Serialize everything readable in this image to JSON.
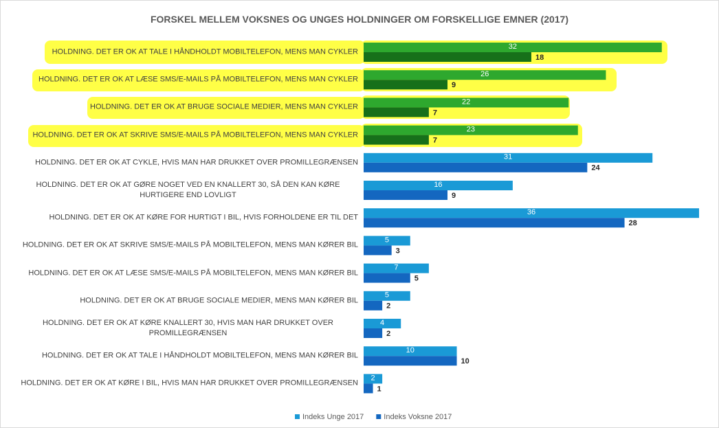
{
  "chart_data": {
    "type": "bar",
    "orientation": "horizontal",
    "title": "FORSKEL MELLEM VOKSNES OG UNGES HOLDNINGER OM FORSKELLIGE EMNER (2017)",
    "categories": [
      "HOLDNING. DET ER OK AT TALE I HÅNDHOLDT MOBILTELEFON, MENS MAN CYKLER",
      "HOLDNING. DET ER OK AT LÆSE SMS/E-MAILS PÅ MOBILTELEFON, MENS MAN CYKLER",
      "HOLDNING. DET ER OK AT BRUGE SOCIALE MEDIER, MENS MAN CYKLER",
      "HOLDNING. DET ER OK AT SKRIVE SMS/E-MAILS PÅ MOBILTELEFON, MENS MAN CYKLER",
      "HOLDNING. DET ER OK AT CYKLE, HVIS MAN HAR DRUKKET OVER PROMILLEGRÆNSEN",
      "HOLDNING. DET ER OK AT GØRE NOGET VED EN KNALLERT 30, SÅ DEN KAN KØRE HURTIGERE END LOVLIGT",
      "HOLDNING. DET ER OK AT KØRE FOR HURTIGT I BIL, HVIS FORHOLDENE ER TIL DET",
      "HOLDNING. DET ER OK AT SKRIVE SMS/E-MAILS PÅ MOBILTELEFON, MENS MAN KØRER BIL",
      "HOLDNING. DET ER OK AT LÆSE SMS/E-MAILS PÅ MOBILTELEFON, MENS MAN KØRER BIL",
      "HOLDNING. DET ER OK AT BRUGE SOCIALE MEDIER, MENS MAN KØRER BIL",
      "HOLDNING. DET ER OK AT KØRE KNALLERT 30, HVIS MAN HAR DRUKKET OVER PROMILLEGRÆNSEN",
      "HOLDNING. DET ER OK AT TALE I HÅNDHOLDT MOBILTELEFON, MENS MAN KØRER BIL",
      "HOLDNING. DET ER OK AT KØRE I BIL, HVIS MAN HAR DRUKKET OVER PROMILLEGRÆNSEN"
    ],
    "series": [
      {
        "name": "Indeks Unge 2017",
        "color": "#1a9ad6",
        "colors": [
          "#2ea82e",
          "#2ea82e",
          "#2ea82e",
          "#2ea82e",
          "#1a9ad6",
          "#1a9ad6",
          "#1a9ad6",
          "#1a9ad6",
          "#1a9ad6",
          "#1a9ad6",
          "#1a9ad6",
          "#1a9ad6",
          "#1a9ad6"
        ],
        "values": [
          32,
          26,
          22,
          23,
          31,
          16,
          36,
          5,
          7,
          5,
          4,
          10,
          2
        ]
      },
      {
        "name": "Indeks Voksne 2017",
        "color": "#1467c0",
        "colors": [
          "#17701a",
          "#17701a",
          "#17701a",
          "#17701a",
          "#1467c0",
          "#1467c0",
          "#1467c0",
          "#1467c0",
          "#1467c0",
          "#1467c0",
          "#1467c0",
          "#1467c0",
          "#1467c0"
        ],
        "values": [
          18,
          9,
          7,
          7,
          24,
          9,
          28,
          3,
          5,
          2,
          2,
          10,
          1
        ]
      }
    ],
    "xlim": [
      0,
      36
    ],
    "legend": "bottom"
  }
}
